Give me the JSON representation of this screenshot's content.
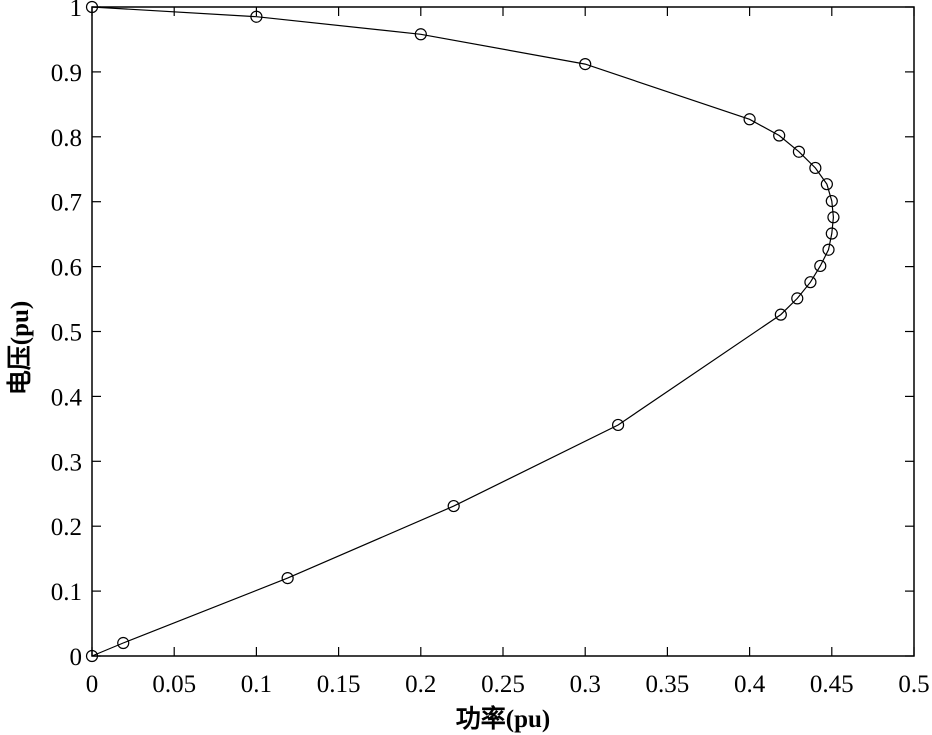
{
  "chart_data": {
    "type": "line",
    "xlabel": "功率(pu)",
    "ylabel": "电压(pu)",
    "xlim": [
      0,
      0.5
    ],
    "ylim": [
      0,
      1
    ],
    "grid": false,
    "x_ticks": [
      "0",
      "0.05",
      "0.1",
      "0.15",
      "0.2",
      "0.25",
      "0.3",
      "0.35",
      "0.4",
      "0.45",
      "0.5"
    ],
    "y_ticks": [
      "0",
      "0.1",
      "0.2",
      "0.3",
      "0.4",
      "0.5",
      "0.6",
      "0.7",
      "0.8",
      "0.9",
      "1"
    ],
    "series": [
      {
        "marker": "circle",
        "color": "#000000",
        "x": [
          0,
          0.1,
          0.2,
          0.3,
          0.4,
          0.418,
          0.43,
          0.44,
          0.447,
          0.45,
          0.451,
          0.45,
          0.448,
          0.443,
          0.437,
          0.429,
          0.419,
          0.32,
          0.22,
          0.119,
          0.019,
          0
        ],
        "y": [
          1,
          0.985,
          0.958,
          0.912,
          0.827,
          0.802,
          0.777,
          0.752,
          0.727,
          0.701,
          0.676,
          0.651,
          0.626,
          0.601,
          0.576,
          0.551,
          0.526,
          0.356,
          0.231,
          0.12,
          0.02,
          0
        ]
      }
    ]
  }
}
